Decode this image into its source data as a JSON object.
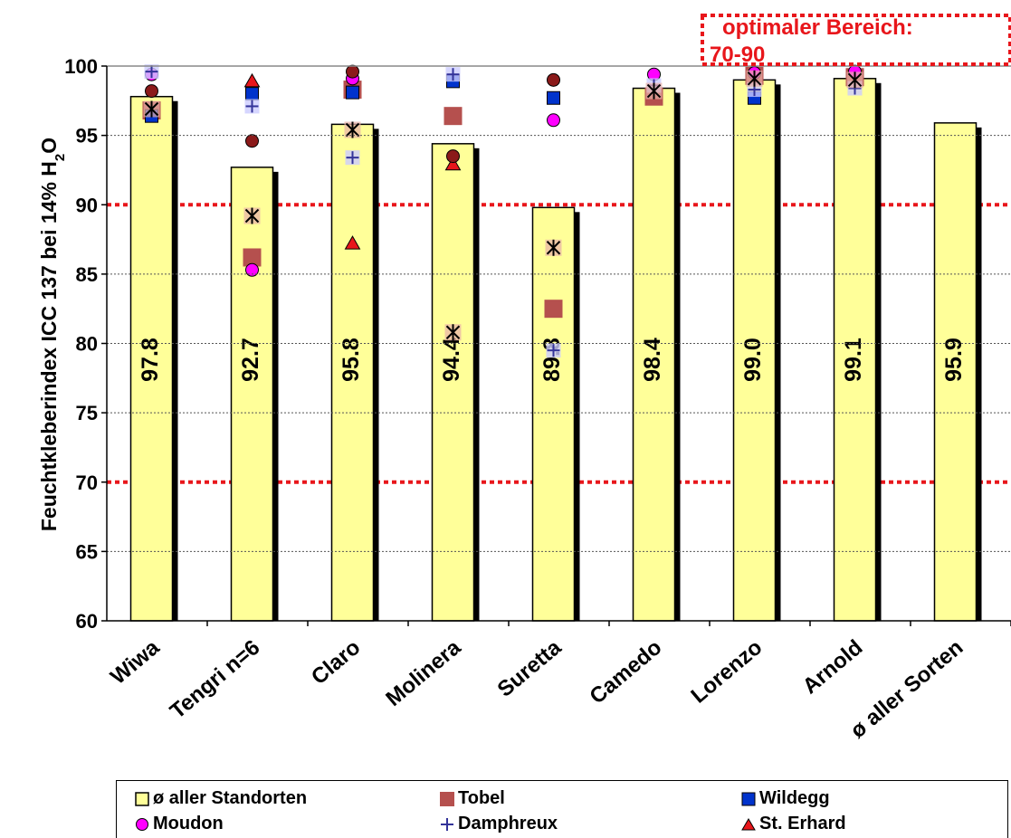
{
  "chart_data": {
    "type": "bar",
    "ylabel": "Feuchtkleberindex ICC 137 bei 14% H",
    "ylabel_sub": "2",
    "ylabel_tail": "O",
    "ylim": [
      60,
      100
    ],
    "yticks": [
      60,
      65,
      70,
      75,
      80,
      85,
      90,
      95,
      100
    ],
    "categories": [
      "Wiwa",
      "Tengri n=6",
      "Claro",
      "Molinera",
      "Suretta",
      "Camedo",
      "Lorenzo",
      "Arnold",
      "ø aller Sorten"
    ],
    "bar_series": {
      "name": "ø aller Standorten",
      "color": "#ffff99",
      "values": [
        97.8,
        92.7,
        95.8,
        94.4,
        89.8,
        98.4,
        99.0,
        99.1,
        95.9
      ],
      "labels": [
        "97.8",
        "92.7",
        "95.8",
        "94.4",
        "89.8",
        "98.4",
        "99.0",
        "99.1",
        "95.9"
      ]
    },
    "series": [
      {
        "name": "Tobel",
        "marker": "square",
        "color": "#b5504e",
        "values": [
          96.8,
          86.2,
          98.3,
          96.4,
          82.5,
          97.8,
          99.3,
          99.2,
          null
        ]
      },
      {
        "name": "Wildegg",
        "marker": "smallsquare",
        "color": "#0033cc",
        "values": [
          96.4,
          98.0,
          98.1,
          98.9,
          97.7,
          null,
          97.7,
          null,
          null
        ]
      },
      {
        "name": "Moudon",
        "marker": "circle",
        "color": "#ff00ff",
        "values": [
          99.4,
          85.3,
          99.1,
          null,
          96.1,
          99.4,
          99.5,
          99.6,
          null
        ]
      },
      {
        "name": "Damphreux",
        "marker": "plus",
        "color": "#333399",
        "values": [
          99.6,
          97.1,
          93.4,
          99.4,
          79.5,
          98.6,
          98.3,
          98.4,
          null
        ]
      },
      {
        "name": "St. Erhard",
        "marker": "triangle",
        "color": "#e8161b",
        "values": [
          null,
          98.9,
          87.2,
          92.9,
          null,
          null,
          null,
          null,
          null
        ]
      },
      {
        "name": "Star",
        "marker": "asterisk",
        "color": "#000000",
        "legend": false,
        "values": [
          96.9,
          89.2,
          95.4,
          80.8,
          86.9,
          98.2,
          99.1,
          99.0,
          null
        ]
      },
      {
        "name": "Dark",
        "marker": "circle",
        "color": "#8b1a1a",
        "legend": false,
        "values": [
          98.2,
          94.6,
          99.6,
          93.5,
          99.0,
          null,
          null,
          null,
          null
        ]
      }
    ],
    "reference_lines": [
      90,
      70
    ],
    "annotation": {
      "line1": "optimaler Bereich:",
      "line2": "70-90"
    },
    "legend": {
      "placement": "bottom",
      "items": [
        "ø aller Standorten",
        "Tobel",
        "Wildegg",
        "Moudon",
        "Damphreux",
        "St. Erhard"
      ]
    }
  }
}
